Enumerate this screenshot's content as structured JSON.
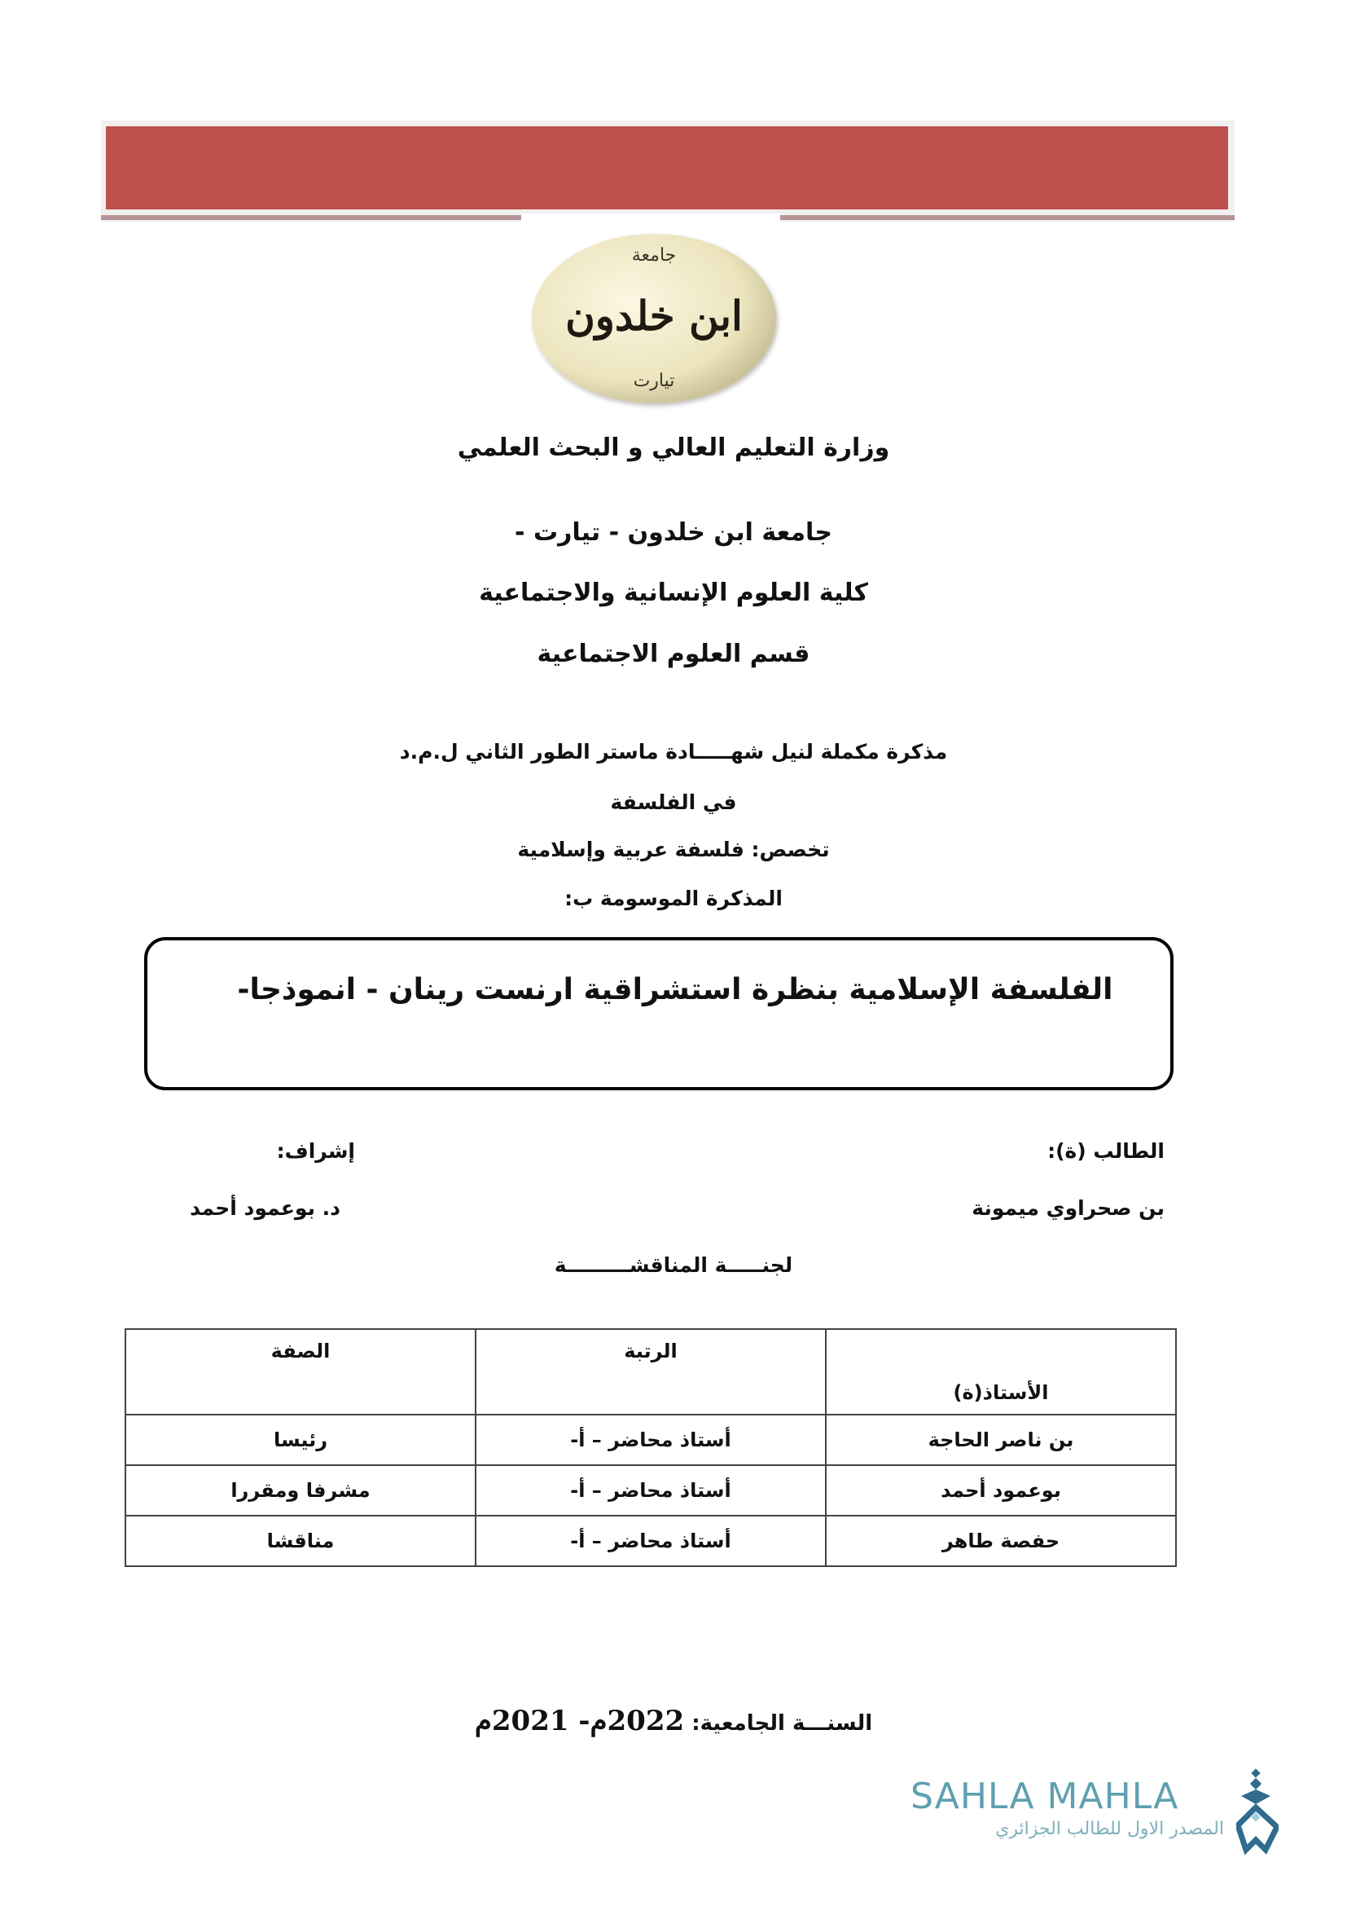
{
  "banner": {
    "color": "#c0504d"
  },
  "university_logo": {
    "text": "ابن خلدون",
    "ring_text": "جامعة تيارت"
  },
  "header": {
    "ministry": "وزارة التعليم العالي و البحث العلمي",
    "university": "جامعة ابن خلدون - تيارت -",
    "faculty": "كلية العلوم الإنسانية والاجتماعية",
    "department": "قسم العلوم الاجتماعية"
  },
  "thesis": {
    "degree": "مذكرة مكملة لنيل شهـــــادة ماستر الطور الثاني ل.م.د",
    "field": "في الفلسفة",
    "specialty": "تخصص: فلسفة عربية وإسلامية",
    "titled_label": "المذكرة الموسومة ب:",
    "title": "الفلسفة الإسلامية بنظرة استشراقية ارنست رينان - انموذجا-"
  },
  "people": {
    "student_label": "الطالب (ة):",
    "student_name": "بن صحراوي ميمونة",
    "supervisor_label": "إشراف:",
    "supervisor_name": "د. بوعمود أحمد"
  },
  "committee": {
    "heading": "لجنـــــة المناقشـــــــــة",
    "columns": [
      "الأستاذ(ة)",
      "الرتبة",
      "الصفة"
    ],
    "rows": [
      [
        "بن ناصر الحاجة",
        "أستاذ محاضر – أ-",
        "رئيسا"
      ],
      [
        "بوعمود أحمد",
        "أستاذ محاضر – أ-",
        "مشرفا ومقررا"
      ],
      [
        "حفصة طاهر",
        "أستاذ محاضر – أ-",
        "مناقشا"
      ]
    ]
  },
  "footer": {
    "year_label": "السنـــة الجامعية:",
    "year_value": "2022م- 2021م"
  },
  "watermark": {
    "brand": "SAHLA MAHLA",
    "tagline": "المصدر الاول للطالب الجزائري",
    "color": "#5fa0b0"
  }
}
